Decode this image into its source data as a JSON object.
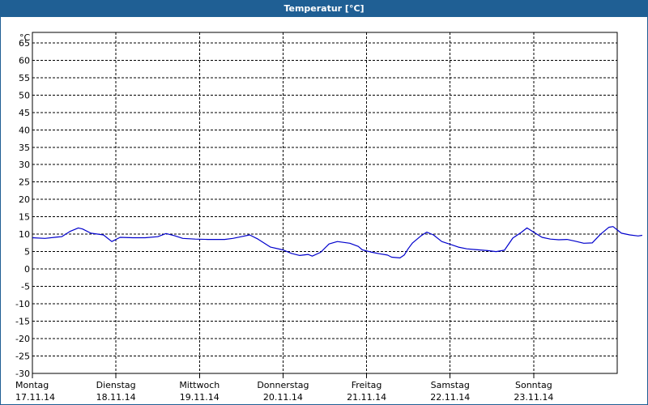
{
  "window": {
    "title": "Temperatur [°C]"
  },
  "chart_data": {
    "type": "line",
    "title": "Temperatur [°C]",
    "y_unit_label": "°C",
    "ylim": [
      -30,
      68
    ],
    "yticks": [
      65,
      60,
      55,
      50,
      45,
      40,
      35,
      30,
      25,
      20,
      15,
      10,
      5,
      0,
      -5,
      -10,
      -15,
      -20,
      -25,
      -30
    ],
    "xlim": [
      0,
      7
    ],
    "x_categories": [
      {
        "day": "Montag",
        "date": "17.11.14"
      },
      {
        "day": "Dienstag",
        "date": "18.11.14"
      },
      {
        "day": "Mittwoch",
        "date": "19.11.14"
      },
      {
        "day": "Donnerstag",
        "date": "20.11.14"
      },
      {
        "day": "Freitag",
        "date": "21.11.14"
      },
      {
        "day": "Samstag",
        "date": "22.11.14"
      },
      {
        "day": "Sonntag",
        "date": "23.11.14"
      }
    ],
    "grid": true,
    "line_color": "#0000cc",
    "series": [
      {
        "values": [
          [
            0.0,
            9.0
          ],
          [
            0.15,
            8.8
          ],
          [
            0.3,
            9.2
          ],
          [
            0.35,
            9.3
          ],
          [
            0.45,
            10.8
          ],
          [
            0.55,
            11.8
          ],
          [
            0.6,
            11.5
          ],
          [
            0.7,
            10.3
          ],
          [
            0.85,
            9.8
          ],
          [
            0.95,
            7.9
          ],
          [
            1.05,
            9.1
          ],
          [
            1.2,
            9.0
          ],
          [
            1.35,
            9.0
          ],
          [
            1.5,
            9.3
          ],
          [
            1.6,
            10.2
          ],
          [
            1.7,
            9.6
          ],
          [
            1.8,
            8.8
          ],
          [
            1.95,
            8.6
          ],
          [
            2.1,
            8.5
          ],
          [
            2.3,
            8.5
          ],
          [
            2.4,
            8.8
          ],
          [
            2.5,
            9.3
          ],
          [
            2.6,
            9.8
          ],
          [
            2.7,
            8.6
          ],
          [
            2.85,
            6.3
          ],
          [
            3.0,
            5.5
          ],
          [
            3.1,
            4.5
          ],
          [
            3.2,
            3.9
          ],
          [
            3.3,
            4.2
          ],
          [
            3.35,
            3.7
          ],
          [
            3.45,
            4.8
          ],
          [
            3.55,
            7.2
          ],
          [
            3.65,
            7.9
          ],
          [
            3.8,
            7.4
          ],
          [
            3.9,
            6.5
          ],
          [
            3.95,
            5.5
          ],
          [
            4.05,
            4.9
          ],
          [
            4.15,
            4.4
          ],
          [
            4.25,
            4.0
          ],
          [
            4.3,
            3.4
          ],
          [
            4.4,
            3.2
          ],
          [
            4.45,
            4.0
          ],
          [
            4.5,
            5.9
          ],
          [
            4.55,
            7.5
          ],
          [
            4.65,
            9.5
          ],
          [
            4.72,
            10.6
          ],
          [
            4.8,
            9.8
          ],
          [
            4.9,
            7.9
          ],
          [
            5.0,
            7.1
          ],
          [
            5.1,
            6.3
          ],
          [
            5.2,
            5.8
          ],
          [
            5.3,
            5.6
          ],
          [
            5.45,
            5.3
          ],
          [
            5.55,
            5.0
          ],
          [
            5.65,
            5.4
          ],
          [
            5.75,
            8.9
          ],
          [
            5.85,
            10.5
          ],
          [
            5.92,
            11.8
          ],
          [
            6.0,
            10.6
          ],
          [
            6.1,
            9.1
          ],
          [
            6.2,
            8.6
          ],
          [
            6.3,
            8.4
          ],
          [
            6.4,
            8.5
          ],
          [
            6.5,
            8.0
          ],
          [
            6.6,
            7.4
          ],
          [
            6.7,
            7.5
          ],
          [
            6.8,
            10.0
          ],
          [
            6.9,
            12.0
          ],
          [
            6.95,
            12.2
          ],
          [
            7.05,
            10.3
          ],
          [
            7.15,
            9.8
          ],
          [
            7.25,
            9.5
          ],
          [
            7.3,
            9.7
          ]
        ]
      }
    ]
  }
}
